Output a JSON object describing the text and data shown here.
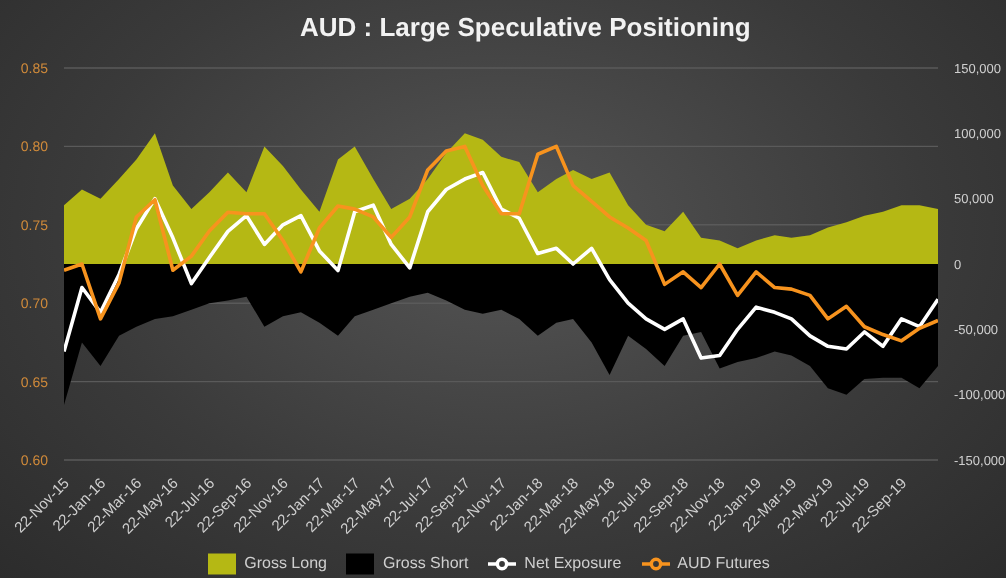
{
  "chart_data": {
    "type": "area",
    "title": "AUD : Large Speculative Positioning",
    "x": [
      "2015-11-22",
      "2015-12-22",
      "2016-01-22",
      "2016-02-22",
      "2016-03-22",
      "2016-04-22",
      "2016-05-22",
      "2016-06-22",
      "2016-07-22",
      "2016-08-22",
      "2016-09-22",
      "2016-10-22",
      "2016-11-22",
      "2016-12-22",
      "2017-01-22",
      "2017-02-22",
      "2017-03-22",
      "2017-04-22",
      "2017-05-22",
      "2017-06-22",
      "2017-07-22",
      "2017-08-22",
      "2017-09-22",
      "2017-10-22",
      "2017-11-22",
      "2017-12-22",
      "2018-01-22",
      "2018-02-22",
      "2018-03-22",
      "2018-04-22",
      "2018-05-22",
      "2018-06-22",
      "2018-07-22",
      "2018-08-22",
      "2018-09-22",
      "2018-10-22",
      "2018-11-22",
      "2018-12-22",
      "2019-01-22",
      "2019-02-22",
      "2019-03-22",
      "2019-04-22",
      "2019-05-22",
      "2019-06-22",
      "2019-07-22",
      "2019-08-22",
      "2019-09-22",
      "2019-10-22",
      "2019-11-22"
    ],
    "series": [
      {
        "name": "Gross Long",
        "axis": "y2",
        "color": "#b5b814",
        "values": [
          45000,
          57000,
          50000,
          65000,
          80000,
          100000,
          60000,
          42000,
          55000,
          70000,
          55000,
          90000,
          75000,
          57000,
          40000,
          80000,
          90000,
          65000,
          42000,
          50000,
          65000,
          85000,
          100000,
          95000,
          82000,
          78000,
          55000,
          65000,
          72000,
          65000,
          70000,
          45000,
          30000,
          25000,
          40000,
          20000,
          18000,
          12000,
          18000,
          22000,
          20000,
          22000,
          28000,
          32000,
          37000,
          40000,
          45000,
          45000,
          42000
        ]
      },
      {
        "name": "Gross Short",
        "axis": "y2",
        "color": "#000000",
        "values": [
          -108000,
          -60000,
          -78000,
          -55000,
          -48000,
          -42000,
          -40000,
          -35000,
          -30000,
          -28000,
          -25000,
          -48000,
          -40000,
          -37000,
          -45000,
          -55000,
          -40000,
          -35000,
          -30000,
          -25000,
          -22000,
          -28000,
          -35000,
          -38000,
          -35000,
          -42000,
          -55000,
          -45000,
          -42000,
          -60000,
          -85000,
          -55000,
          -65000,
          -78000,
          -55000,
          -52000,
          -80000,
          -75000,
          -72000,
          -67000,
          -70000,
          -78000,
          -95000,
          -100000,
          -88000,
          -87000,
          -87000,
          -95000,
          -78000
        ]
      },
      {
        "name": "Net Exposure",
        "type": "line",
        "axis": "y2",
        "color": "#ffffff",
        "values": [
          -67000,
          -18000,
          -37000,
          -8000,
          27000,
          50000,
          20000,
          -15000,
          5000,
          25000,
          37000,
          15000,
          30000,
          37000,
          10000,
          -5000,
          40000,
          45000,
          15000,
          -3000,
          40000,
          57000,
          65000,
          70000,
          42000,
          35000,
          8000,
          12000,
          0,
          12000,
          -12000,
          -30000,
          -42000,
          -50000,
          -42000,
          -72000,
          -70000,
          -50000,
          -33000,
          -37000,
          -42000,
          -55000,
          -63000,
          -65000,
          -52000,
          -63000,
          -42000,
          -48000,
          -27000
        ]
      },
      {
        "name": "AUD Futures",
        "type": "line",
        "axis": "y",
        "color": "#f7931e",
        "values": [
          0.721,
          0.725,
          0.69,
          0.713,
          0.755,
          0.766,
          0.721,
          0.73,
          0.746,
          0.758,
          0.757,
          0.757,
          0.74,
          0.72,
          0.748,
          0.762,
          0.76,
          0.755,
          0.742,
          0.755,
          0.785,
          0.797,
          0.8,
          0.775,
          0.757,
          0.757,
          0.795,
          0.8,
          0.775,
          0.765,
          0.755,
          0.748,
          0.74,
          0.712,
          0.72,
          0.71,
          0.725,
          0.705,
          0.72,
          0.71,
          0.709,
          0.705,
          0.69,
          0.698,
          0.685,
          0.68,
          0.676,
          0.684,
          0.689
        ]
      }
    ],
    "xlim": [
      "2015-11-22",
      "2019-11-22"
    ],
    "xticks": [
      {
        "value": "2015-11-22",
        "label": "22-Nov-15"
      },
      {
        "value": "2016-01-22",
        "label": "22-Jan-16"
      },
      {
        "value": "2016-03-22",
        "label": "22-Mar-16"
      },
      {
        "value": "2016-05-22",
        "label": "22-May-16"
      },
      {
        "value": "2016-07-22",
        "label": "22-Jul-16"
      },
      {
        "value": "2016-09-22",
        "label": "22-Sep-16"
      },
      {
        "value": "2016-11-22",
        "label": "22-Nov-16"
      },
      {
        "value": "2017-01-22",
        "label": "22-Jan-17"
      },
      {
        "value": "2017-03-22",
        "label": "22-Mar-17"
      },
      {
        "value": "2017-05-22",
        "label": "22-May-17"
      },
      {
        "value": "2017-07-22",
        "label": "22-Jul-17"
      },
      {
        "value": "2017-09-22",
        "label": "22-Sep-17"
      },
      {
        "value": "2017-11-22",
        "label": "22-Nov-17"
      },
      {
        "value": "2018-01-22",
        "label": "22-Jan-18"
      },
      {
        "value": "2018-03-22",
        "label": "22-Mar-18"
      },
      {
        "value": "2018-05-22",
        "label": "22-May-18"
      },
      {
        "value": "2018-07-22",
        "label": "22-Jul-18"
      },
      {
        "value": "2018-09-22",
        "label": "22-Sep-18"
      },
      {
        "value": "2018-11-22",
        "label": "22-Nov-18"
      },
      {
        "value": "2019-01-22",
        "label": "22-Jan-19"
      },
      {
        "value": "2019-03-22",
        "label": "22-Mar-19"
      },
      {
        "value": "2019-05-22",
        "label": "22-May-19"
      },
      {
        "value": "2019-07-22",
        "label": "22-Jul-19"
      },
      {
        "value": "2019-09-22",
        "label": "22-Sep-19"
      }
    ],
    "ylim": [
      0.6,
      0.85
    ],
    "yticks": [
      {
        "value": 0.6,
        "label": "0.60"
      },
      {
        "value": 0.65,
        "label": "0.65"
      },
      {
        "value": 0.7,
        "label": "0.70"
      },
      {
        "value": 0.75,
        "label": "0.75"
      },
      {
        "value": 0.8,
        "label": "0.80"
      },
      {
        "value": 0.85,
        "label": "0.85"
      }
    ],
    "y2lim": [
      -150000,
      150000
    ],
    "y2ticks": [
      {
        "value": -150000,
        "label": "-150,000"
      },
      {
        "value": -100000,
        "label": "-100,000"
      },
      {
        "value": -50000,
        "label": "-50,000"
      },
      {
        "value": 0,
        "label": "0"
      },
      {
        "value": 50000,
        "label": "50,000"
      },
      {
        "value": 100000,
        "label": "100,000"
      },
      {
        "value": 150000,
        "label": "150,000"
      }
    ],
    "grid": "y",
    "legend": "bottom"
  }
}
